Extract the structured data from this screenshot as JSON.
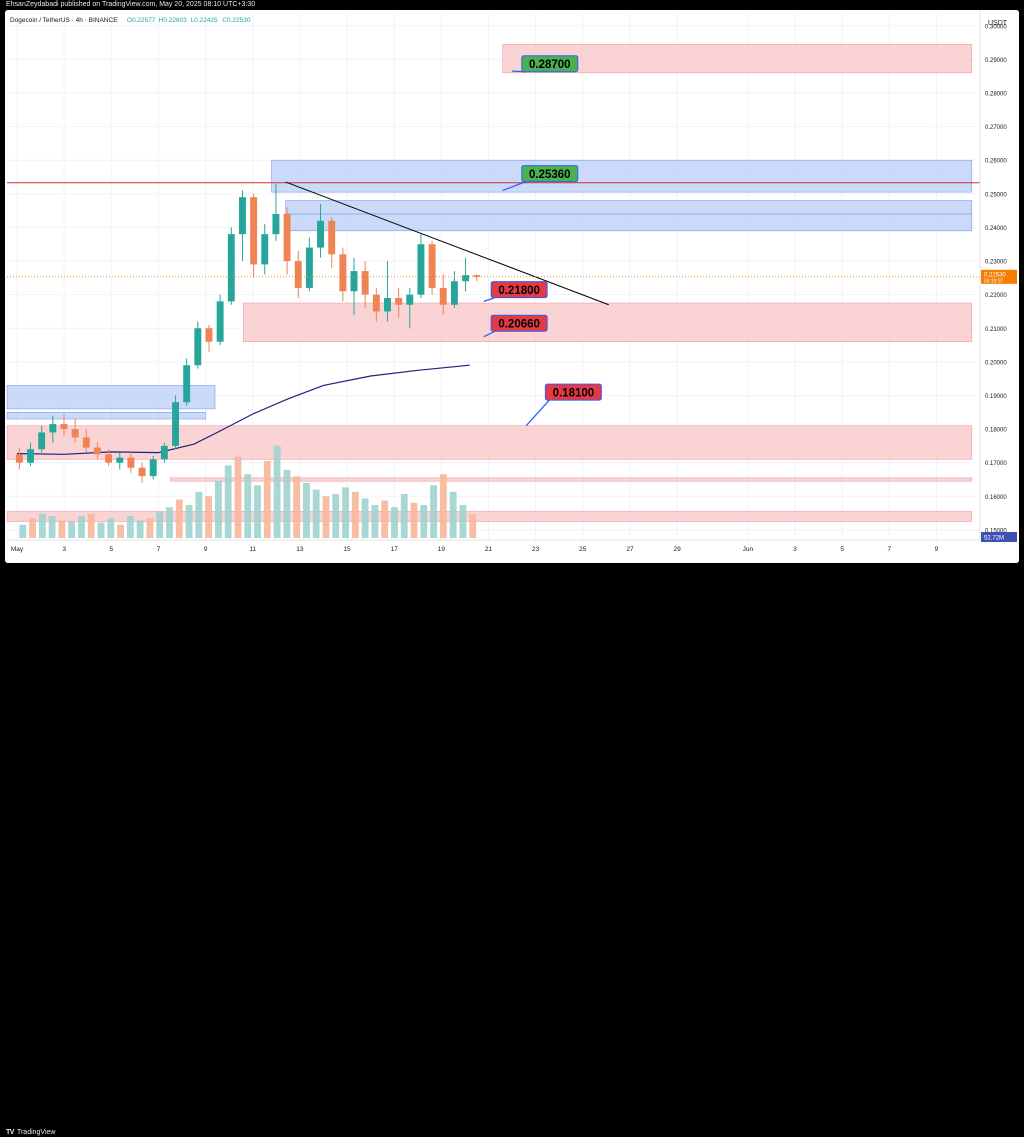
{
  "header": {
    "publisher_text": "EhsanZeydabadi published on TradingView.com, May 20, 2025 08:10 UTC+3:30"
  },
  "footer": {
    "logo_mark": "TV",
    "logo_text": "TradingView"
  },
  "chart_data": {
    "type": "candlestick",
    "symbol_line": {
      "symbol": "Dogecoin / TetherUS · 4h · BINANCE",
      "open": "O0.22577",
      "high": "H0.22603",
      "low": "L0.22425",
      "close": "C0.22530"
    },
    "currency_label": "USDT",
    "y_axis": {
      "min": 0.147,
      "max": 0.3035,
      "ticks": [
        "0.15000",
        "0.16000",
        "0.17000",
        "0.18000",
        "0.19000",
        "0.20000",
        "0.21000",
        "0.22000",
        "0.23000",
        "0.24000",
        "0.25000",
        "0.26000",
        "0.27000",
        "0.28000",
        "0.29000",
        "0.30000"
      ],
      "price_label": "0.22530",
      "countdown_label": "03:19:37",
      "volume_label": "52.72M"
    },
    "x_axis": {
      "day_min": 0,
      "day_max": 40,
      "ticks": [
        {
          "day": 0,
          "label": "May"
        },
        {
          "day": 2,
          "label": "3"
        },
        {
          "day": 4,
          "label": "5"
        },
        {
          "day": 6,
          "label": "7"
        },
        {
          "day": 8,
          "label": "9"
        },
        {
          "day": 10,
          "label": "11"
        },
        {
          "day": 12,
          "label": "13"
        },
        {
          "day": 14,
          "label": "15"
        },
        {
          "day": 16,
          "label": "17"
        },
        {
          "day": 18,
          "label": "19"
        },
        {
          "day": 20,
          "label": "21"
        },
        {
          "day": 22,
          "label": "23"
        },
        {
          "day": 24,
          "label": "25"
        },
        {
          "day": 26,
          "label": "27"
        },
        {
          "day": 28,
          "label": "29"
        },
        {
          "day": 31,
          "label": "Jun"
        },
        {
          "day": 33,
          "label": "3"
        },
        {
          "day": 35,
          "label": "5"
        },
        {
          "day": 37,
          "label": "7"
        },
        {
          "day": 39,
          "label": "9"
        }
      ]
    },
    "colors": {
      "up": "#26a69a",
      "down": "#ef8354",
      "ma": "#1a237e",
      "red_zone": "#f8c4c6",
      "blue_zone": "#b9cdf7",
      "resistance_line": "#d32f2f",
      "label_green": "#4caf50",
      "label_red": "#e53945",
      "price_tag": "#f57c00"
    },
    "candles": [
      [
        0.1725,
        0.1745,
        0.168,
        0.17
      ],
      [
        0.17,
        0.176,
        0.169,
        0.174
      ],
      [
        0.174,
        0.181,
        0.173,
        0.179
      ],
      [
        0.179,
        0.184,
        0.176,
        0.1815
      ],
      [
        0.1815,
        0.1845,
        0.178,
        0.18
      ],
      [
        0.18,
        0.183,
        0.176,
        0.1775
      ],
      [
        0.1775,
        0.18,
        0.173,
        0.1745
      ],
      [
        0.1745,
        0.176,
        0.171,
        0.1725
      ],
      [
        0.1725,
        0.174,
        0.169,
        0.17
      ],
      [
        0.17,
        0.173,
        0.168,
        0.1715
      ],
      [
        0.1715,
        0.1735,
        0.167,
        0.1685
      ],
      [
        0.1685,
        0.17,
        0.164,
        0.166
      ],
      [
        0.166,
        0.172,
        0.165,
        0.171
      ],
      [
        0.171,
        0.176,
        0.17,
        0.175
      ],
      [
        0.175,
        0.19,
        0.174,
        0.188
      ],
      [
        0.188,
        0.201,
        0.187,
        0.199
      ],
      [
        0.199,
        0.212,
        0.198,
        0.21
      ],
      [
        0.21,
        0.211,
        0.203,
        0.206
      ],
      [
        0.206,
        0.22,
        0.205,
        0.218
      ],
      [
        0.218,
        0.24,
        0.217,
        0.238
      ],
      [
        0.238,
        0.251,
        0.23,
        0.249
      ],
      [
        0.249,
        0.25,
        0.225,
        0.229
      ],
      [
        0.229,
        0.241,
        0.226,
        0.238
      ],
      [
        0.238,
        0.253,
        0.236,
        0.244
      ],
      [
        0.244,
        0.246,
        0.226,
        0.23
      ],
      [
        0.23,
        0.233,
        0.219,
        0.222
      ],
      [
        0.222,
        0.237,
        0.221,
        0.234
      ],
      [
        0.234,
        0.247,
        0.231,
        0.242
      ],
      [
        0.242,
        0.243,
        0.228,
        0.232
      ],
      [
        0.232,
        0.234,
        0.218,
        0.221
      ],
      [
        0.221,
        0.231,
        0.214,
        0.227
      ],
      [
        0.227,
        0.23,
        0.216,
        0.22
      ],
      [
        0.22,
        0.222,
        0.212,
        0.215
      ],
      [
        0.215,
        0.23,
        0.212,
        0.219
      ],
      [
        0.219,
        0.222,
        0.213,
        0.217
      ],
      [
        0.217,
        0.222,
        0.21,
        0.22
      ],
      [
        0.22,
        0.238,
        0.219,
        0.235
      ],
      [
        0.235,
        0.236,
        0.22,
        0.222
      ],
      [
        0.222,
        0.226,
        0.214,
        0.217
      ],
      [
        0.217,
        0.227,
        0.216,
        0.224
      ],
      [
        0.224,
        0.231,
        0.221,
        0.2258
      ],
      [
        0.2258,
        0.226,
        0.224,
        0.2253
      ]
    ],
    "volume_series": [
      [
        0.12,
        0.18,
        0.22,
        0.2,
        0.16,
        0.15,
        0.2,
        0.22,
        0.14,
        0.18,
        0.12,
        0.2,
        0.16
      ],
      [
        0.18,
        0.24,
        0.28,
        0.35,
        0.3,
        0.42,
        0.38,
        0.52,
        0.66,
        0.74,
        0.58,
        0.48
      ],
      [
        0.7,
        0.84,
        0.62,
        0.56,
        0.5,
        0.44,
        0.38,
        0.4,
        0.46,
        0.42
      ],
      [
        0.36,
        0.3,
        0.34,
        0.28,
        0.4,
        0.32,
        0.3,
        0.48,
        0.58,
        0.42,
        0.3,
        0.22
      ]
    ],
    "ma_points": [
      [
        0.0,
        0.1727
      ],
      [
        2,
        0.1725
      ],
      [
        4,
        0.1732
      ],
      [
        6,
        0.173
      ],
      [
        7.5,
        0.1755
      ],
      [
        8.5,
        0.179
      ],
      [
        10,
        0.1845
      ],
      [
        11.5,
        0.189
      ],
      [
        13,
        0.193
      ],
      [
        15,
        0.1958
      ],
      [
        17,
        0.1975
      ],
      [
        19.2,
        0.199
      ]
    ],
    "trendline": {
      "from": [
        11.4,
        0.2535
      ],
      "to": [
        25.1,
        0.217
      ]
    },
    "resistance_level": 0.2533,
    "zones": [
      {
        "kind": "red",
        "from_day": 20.6,
        "to_day": 40.5,
        "low": 0.286,
        "high": 0.2945
      },
      {
        "kind": "blue",
        "from_day": 10.8,
        "to_day": 40.5,
        "low": 0.2505,
        "high": 0.26
      },
      {
        "kind": "blue",
        "from_day": 11.4,
        "to_day": 40.5,
        "low": 0.244,
        "high": 0.248
      },
      {
        "kind": "blue",
        "from_day": 11.4,
        "to_day": 40.5,
        "low": 0.239,
        "high": 0.244
      },
      {
        "kind": "red",
        "from_day": 9.6,
        "to_day": 40.5,
        "low": 0.206,
        "high": 0.2175
      },
      {
        "kind": "blue",
        "from_day": -1,
        "to_day": 8.4,
        "low": 0.186,
        "high": 0.193
      },
      {
        "kind": "blue",
        "from_day": -1,
        "to_day": 8.0,
        "low": 0.183,
        "high": 0.185
      },
      {
        "kind": "red",
        "from_day": -1,
        "to_day": 40.5,
        "low": 0.171,
        "high": 0.181
      },
      {
        "kind": "red",
        "from_day": 6.5,
        "to_day": 40.5,
        "low": 0.1645,
        "high": 0.1655
      },
      {
        "kind": "red",
        "from_day": -1,
        "to_day": 40.5,
        "low": 0.1525,
        "high": 0.1555
      }
    ],
    "annotations": [
      {
        "text": "0.28700",
        "style": "green",
        "price": 0.2887,
        "day": 22.6,
        "arrow_to_day": 21.0,
        "arrow_to_price": 0.2865
      },
      {
        "text": "0.25360",
        "style": "green",
        "price": 0.256,
        "day": 22.6,
        "arrow_to_day": 20.6,
        "arrow_to_price": 0.251
      },
      {
        "text": "0.21800",
        "style": "red",
        "price": 0.2215,
        "day": 21.3,
        "arrow_to_day": 19.8,
        "arrow_to_price": 0.218
      },
      {
        "text": "0.20660",
        "style": "red",
        "price": 0.2115,
        "day": 21.3,
        "arrow_to_day": 19.8,
        "arrow_to_price": 0.2075
      },
      {
        "text": "0.18100",
        "style": "red",
        "price": 0.191,
        "day": 23.6,
        "arrow_to_day": 21.6,
        "arrow_to_price": 0.181
      }
    ]
  }
}
